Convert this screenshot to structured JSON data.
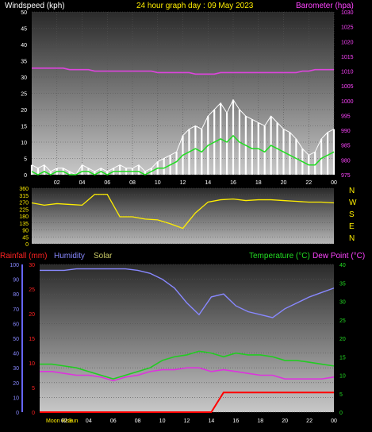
{
  "header": {
    "windspeed_label": "Windspeed (kph)",
    "title": "24 hour graph day : 09 May 2023",
    "barometer_label": "Barometer (hpa)"
  },
  "bottom_header": {
    "rainfall_label": "Rainfall (mm)",
    "humidity_label": "Humidity",
    "solar_label": "Solar",
    "temperature_label": "Temperature (°C)",
    "dewpoint_label": "Dew Point (°C)"
  },
  "moon_label": "Moon Rise",
  "sun_label": "Sun",
  "compass": [
    "N",
    "W",
    "S",
    "E",
    "N"
  ],
  "colors": {
    "windspeed": "#ffffff",
    "wind_avg": "#22dd22",
    "barometer": "#dd44dd",
    "wind_dir": "#ffee00",
    "humidity": "#8888ff",
    "temperature": "#22cc22",
    "dewpoint": "#dd33dd",
    "rain": "#ff0000",
    "solar": "#cccc66"
  },
  "chart_data": [
    {
      "type": "line",
      "name": "wind",
      "x_ticks": [
        "02",
        "04",
        "06",
        "08",
        "10",
        "12",
        "14",
        "16",
        "18",
        "20",
        "22",
        "00"
      ],
      "y_left_ticks": [
        0,
        5,
        10,
        15,
        20,
        25,
        30,
        35,
        40,
        45,
        50
      ],
      "y_right_ticks": [
        975,
        980,
        985,
        990,
        995,
        1000,
        1005,
        1010,
        1015,
        1020,
        1025,
        1030
      ],
      "ylim": [
        0,
        50
      ],
      "y2lim": [
        975,
        1030
      ],
      "x": [
        0,
        0.5,
        1,
        1.5,
        2,
        2.5,
        3,
        3.5,
        4,
        4.5,
        5,
        5.5,
        6,
        6.5,
        7,
        7.5,
        8,
        8.5,
        9,
        9.5,
        10,
        10.5,
        11,
        11.5,
        12,
        12.5,
        13,
        13.5,
        14,
        14.5,
        15,
        15.5,
        16,
        16.5,
        17,
        17.5,
        18,
        18.5,
        19,
        19.5,
        20,
        20.5,
        21,
        21.5,
        22,
        22.5,
        23,
        23.5,
        24
      ],
      "series": [
        {
          "key": "gust",
          "values": [
            3,
            2,
            3,
            1,
            2,
            2,
            1,
            0,
            3,
            2,
            1,
            2,
            1,
            2,
            3,
            2,
            2,
            3,
            1,
            2,
            4,
            5,
            6,
            7,
            12,
            14,
            15,
            14,
            18,
            20,
            22,
            19,
            23,
            20,
            18,
            17,
            16,
            15,
            18,
            16,
            14,
            13,
            11,
            8,
            6,
            7,
            11,
            13,
            14
          ]
        },
        {
          "key": "avg",
          "values": [
            1,
            0,
            1,
            0,
            1,
            1,
            0,
            0,
            1,
            1,
            0,
            1,
            0,
            1,
            1,
            1,
            1,
            1,
            0,
            1,
            2,
            2,
            3,
            4,
            6,
            7,
            8,
            7,
            9,
            10,
            11,
            10,
            12,
            10,
            9,
            8,
            8,
            7,
            9,
            8,
            7,
            6,
            5,
            4,
            3,
            3,
            5,
            6,
            7
          ]
        },
        {
          "key": "barometer",
          "values": [
            1011,
            1011,
            1011,
            1011,
            1011,
            1011,
            1010.5,
            1010.5,
            1010.5,
            1010.5,
            1010,
            1010,
            1010,
            1010,
            1010,
            1010,
            1010,
            1010,
            1010,
            1010,
            1009.5,
            1009.5,
            1009.5,
            1009.5,
            1009.5,
            1009.5,
            1009,
            1009,
            1009,
            1009,
            1009.5,
            1009.5,
            1009.5,
            1009.5,
            1009.5,
            1009.5,
            1009.5,
            1009.5,
            1009.5,
            1009.5,
            1009.5,
            1009.5,
            1009.5,
            1010,
            1010,
            1010.5,
            1010.5,
            1010.5,
            1010.5
          ]
        }
      ]
    },
    {
      "type": "line",
      "name": "wind_direction",
      "y_ticks": [
        0,
        45,
        90,
        135,
        180,
        225,
        270,
        315,
        360
      ],
      "ylim": [
        0,
        360
      ],
      "x": [
        0,
        1,
        2,
        3,
        4,
        5,
        6,
        7,
        8,
        9,
        10,
        11,
        12,
        13,
        14,
        15,
        16,
        17,
        18,
        19,
        20,
        21,
        22,
        23,
        24
      ],
      "values": [
        265,
        250,
        260,
        255,
        250,
        320,
        320,
        175,
        175,
        160,
        155,
        130,
        100,
        200,
        270,
        285,
        290,
        280,
        285,
        285,
        280,
        275,
        270,
        270,
        265
      ]
    },
    {
      "type": "line",
      "name": "temperature_humidity_rain",
      "y_left_ticks": [
        0,
        10,
        20,
        30,
        40,
        50,
        60,
        70,
        80,
        90,
        100
      ],
      "y_rain_ticks": [
        0,
        5,
        10,
        15,
        20,
        25,
        30
      ],
      "y_right_ticks": [
        0,
        5,
        10,
        15,
        20,
        25,
        30,
        35,
        40
      ],
      "x": [
        0,
        1,
        2,
        3,
        4,
        5,
        6,
        7,
        8,
        9,
        10,
        11,
        12,
        13,
        14,
        15,
        16,
        17,
        18,
        19,
        20,
        21,
        22,
        23,
        24
      ],
      "series": [
        {
          "key": "humidity",
          "values": [
            96,
            96,
            96,
            97,
            97,
            97,
            97,
            97,
            96,
            94,
            90,
            84,
            74,
            66,
            78,
            80,
            72,
            68,
            66,
            64,
            70,
            74,
            78,
            81,
            84
          ]
        },
        {
          "key": "temperature",
          "values": [
            13,
            13,
            12.5,
            12,
            11,
            10,
            9,
            10,
            11,
            12,
            14,
            15,
            15.5,
            16.5,
            16,
            15,
            16,
            15.5,
            15.5,
            15,
            14,
            14,
            13.5,
            13,
            12.5
          ]
        },
        {
          "key": "dewpoint",
          "values": [
            11,
            11,
            10.5,
            10,
            10,
            9.5,
            8.5,
            9.5,
            10,
            11,
            11.5,
            11.5,
            12,
            12,
            11,
            11.5,
            11,
            10.5,
            10,
            10,
            9,
            9,
            9,
            9,
            9.5
          ]
        },
        {
          "key": "rain",
          "values": [
            0,
            0,
            0,
            0,
            0,
            0,
            0,
            0,
            0,
            0,
            0,
            0,
            0,
            0,
            0,
            4,
            4,
            4,
            4,
            4,
            4,
            4,
            4,
            4,
            4
          ]
        }
      ]
    }
  ]
}
